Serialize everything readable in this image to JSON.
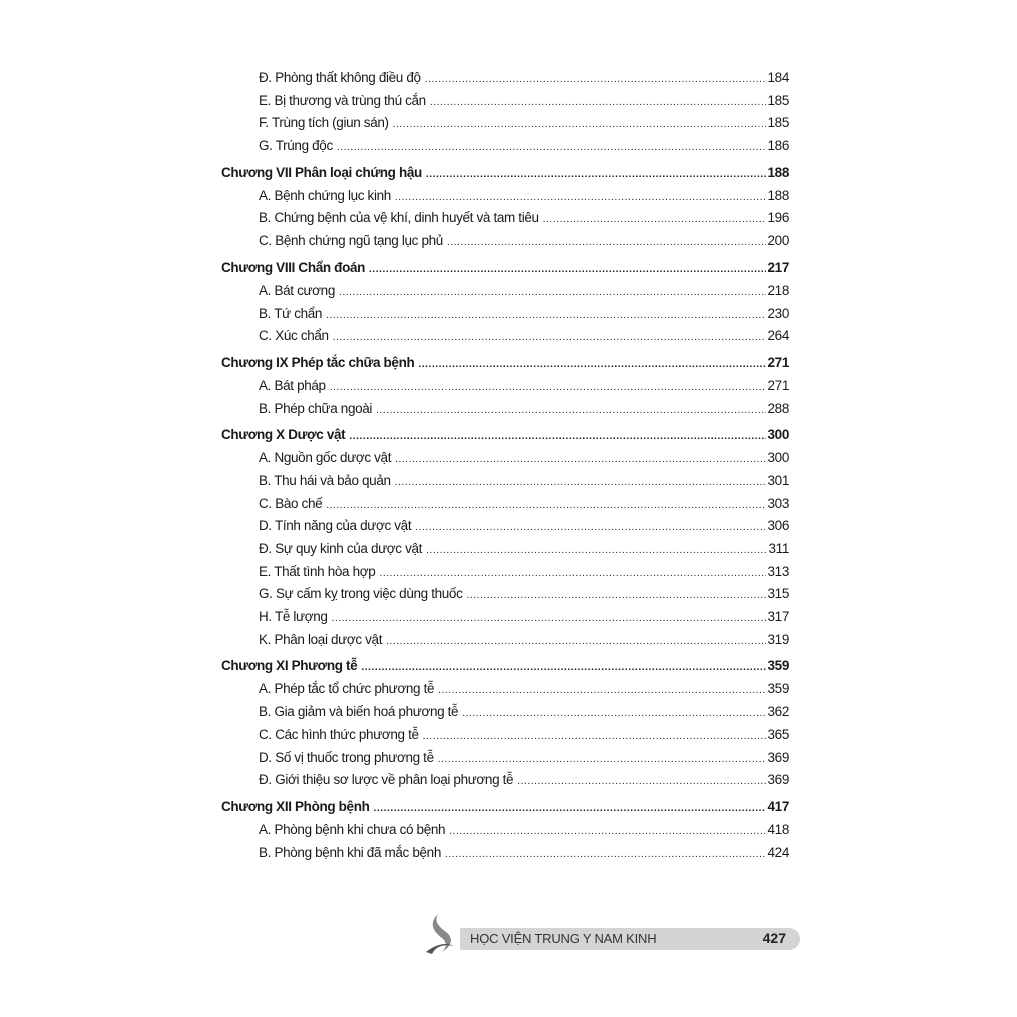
{
  "toc": [
    {
      "type": "sub",
      "label": "Đ. Phòng thất không điều độ",
      "page": "184"
    },
    {
      "type": "sub",
      "label": "E. Bị thương và trùng thú cắn",
      "page": "185"
    },
    {
      "type": "sub",
      "label": "F. Trùng tích (giun sán)",
      "page": "185"
    },
    {
      "type": "sub",
      "label": "G. Trúng độc",
      "page": "186"
    },
    {
      "type": "chapter",
      "label": "Chương VII Phân loại chứng hậu",
      "page": "188"
    },
    {
      "type": "sub",
      "label": "A. Bệnh chứng lục kinh",
      "page": "188"
    },
    {
      "type": "sub",
      "label": "B. Chứng bệnh của vệ khí, dinh huyết và tam tiêu",
      "page": "196"
    },
    {
      "type": "sub",
      "label": "C. Bệnh chứng ngũ tạng lục phủ",
      "page": "200"
    },
    {
      "type": "chapter",
      "label": "Chương VIII Chẩn đoán",
      "page": "217"
    },
    {
      "type": "sub",
      "label": "A. Bát cương",
      "page": "218"
    },
    {
      "type": "sub",
      "label": "B. Tứ chẩn",
      "page": "230"
    },
    {
      "type": "sub",
      "label": "C. Xúc chẩn",
      "page": "264"
    },
    {
      "type": "chapter",
      "label": "Chương IX Phép tắc chữa bệnh",
      "page": "271"
    },
    {
      "type": "sub",
      "label": "A. Bát pháp",
      "page": "271"
    },
    {
      "type": "sub",
      "label": "B. Phép chữa ngoài",
      "page": "288"
    },
    {
      "type": "chapter",
      "label": "Chương X Dược vật",
      "page": "300"
    },
    {
      "type": "sub",
      "label": "A. Nguồn gốc dược vật",
      "page": "300"
    },
    {
      "type": "sub",
      "label": "B. Thu hái và bảo quản",
      "page": "301"
    },
    {
      "type": "sub",
      "label": "C. Bào chế",
      "page": "303"
    },
    {
      "type": "sub",
      "label": "D. Tính năng của dược vật",
      "page": "306"
    },
    {
      "type": "sub",
      "label": "Đ. Sự quy kinh của dược vật",
      "page": "311"
    },
    {
      "type": "sub",
      "label": "E. Thất tình hòa hợp",
      "page": "313"
    },
    {
      "type": "sub",
      "label": "G. Sự cấm kỵ trong việc dùng thuốc",
      "page": "315"
    },
    {
      "type": "sub",
      "label": "H. Tễ lượng",
      "page": "317"
    },
    {
      "type": "sub",
      "label": "K. Phân loại dược vật",
      "page": "319"
    },
    {
      "type": "chapter",
      "label": "Chương XI Phương tễ",
      "page": "359"
    },
    {
      "type": "sub",
      "label": "A. Phép tắc tổ chức phương tễ",
      "page": "359"
    },
    {
      "type": "sub",
      "label": "B. Gia giảm và biến hoá phương tễ",
      "page": "362"
    },
    {
      "type": "sub",
      "label": "C. Các hình thức phương tễ",
      "page": "365"
    },
    {
      "type": "sub",
      "label": "D. Số vị thuốc trong phương tễ",
      "page": "369"
    },
    {
      "type": "sub",
      "label": "Đ. Giới thiệu sơ lược về phân loại phương tễ",
      "page": "369"
    },
    {
      "type": "chapter",
      "label": "Chương XII Phòng bệnh",
      "page": "417"
    },
    {
      "type": "sub",
      "label": "A. Phòng bệnh khi chưa có bệnh",
      "page": "418"
    },
    {
      "type": "sub",
      "label": "B. Phòng bệnh khi đã mắc bệnh",
      "page": "424"
    }
  ],
  "footer": {
    "publisher": "HỌC VIỆN TRUNG Y NAM KINH",
    "page_number": "427",
    "logo_icon": "flame-swirl-logo",
    "bar_color": "#d4d4d4"
  }
}
